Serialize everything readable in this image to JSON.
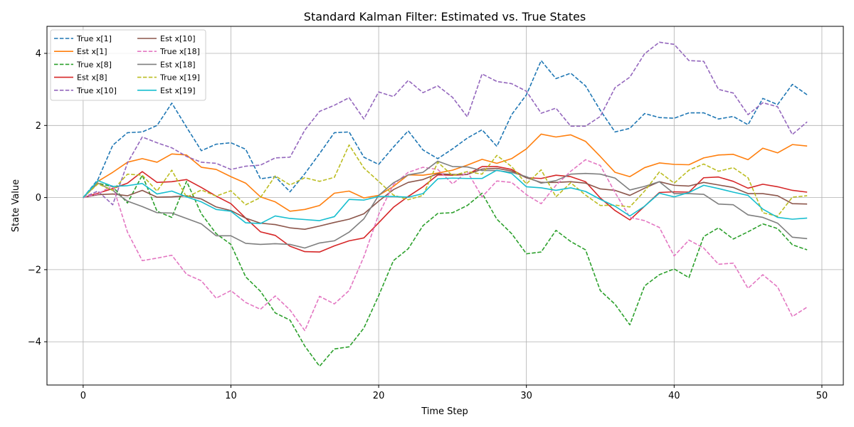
{
  "chart_data": {
    "type": "line",
    "title": "Standard Kalman Filter: Estimated vs. True States",
    "xlabel": "Time Step",
    "ylabel": "State Value",
    "xlim": [
      -2.45,
      51.45
    ],
    "ylim": [
      -5.2,
      4.75
    ],
    "xticks": [
      0,
      10,
      20,
      30,
      40,
      50
    ],
    "yticks": [
      -4,
      -2,
      0,
      2,
      4
    ],
    "grid": true,
    "legend": {
      "placement": "top-left",
      "columns": 2
    },
    "x": [
      0,
      1,
      2,
      3,
      4,
      5,
      6,
      7,
      8,
      9,
      10,
      11,
      12,
      13,
      14,
      15,
      16,
      17,
      18,
      19,
      20,
      21,
      22,
      23,
      24,
      25,
      26,
      27,
      28,
      29,
      30,
      31,
      32,
      33,
      34,
      35,
      36,
      37,
      38,
      39,
      40,
      41,
      42,
      43,
      44,
      45,
      46,
      47,
      48,
      49
    ],
    "series": [
      {
        "name": "True x[1]",
        "color": "#1f77b4",
        "style": "dashed",
        "values": [
          0.0,
          0.5,
          1.45,
          1.8,
          1.82,
          2.0,
          2.62,
          1.95,
          1.3,
          1.48,
          1.52,
          1.34,
          0.52,
          0.58,
          0.16,
          0.66,
          1.22,
          1.8,
          1.82,
          1.12,
          0.92,
          1.4,
          1.85,
          1.32,
          1.08,
          1.35,
          1.65,
          1.88,
          1.42,
          2.3,
          2.85,
          3.8,
          3.3,
          3.45,
          3.1,
          2.42,
          1.82,
          1.92,
          2.33,
          2.22,
          2.2,
          2.35,
          2.35,
          2.18,
          2.25,
          2.02,
          2.75,
          2.58,
          3.14,
          2.85
        ]
      },
      {
        "name": "Est x[1]",
        "color": "#ff7f0e",
        "style": "solid",
        "values": [
          0.0,
          0.45,
          0.7,
          0.98,
          1.08,
          0.98,
          1.21,
          1.18,
          0.84,
          0.78,
          0.58,
          0.4,
          0.02,
          -0.12,
          -0.38,
          -0.33,
          -0.22,
          0.12,
          0.18,
          -0.01,
          0.06,
          0.31,
          0.63,
          0.62,
          0.68,
          0.76,
          0.9,
          1.06,
          0.95,
          1.08,
          1.35,
          1.76,
          1.68,
          1.74,
          1.56,
          1.14,
          0.7,
          0.58,
          0.83,
          0.96,
          0.92,
          0.91,
          1.1,
          1.18,
          1.2,
          1.05,
          1.37,
          1.24,
          1.47,
          1.43
        ]
      },
      {
        "name": "True x[8]",
        "color": "#2ca02c",
        "style": "dashed",
        "values": [
          0.0,
          0.4,
          0.3,
          -0.15,
          0.62,
          -0.38,
          -0.55,
          0.45,
          -0.45,
          -1.0,
          -1.3,
          -2.2,
          -2.6,
          -3.2,
          -3.4,
          -4.12,
          -4.68,
          -4.2,
          -4.14,
          -3.62,
          -2.72,
          -1.75,
          -1.42,
          -0.78,
          -0.44,
          -0.42,
          -0.22,
          0.12,
          -0.6,
          -1.0,
          -1.56,
          -1.51,
          -0.91,
          -1.22,
          -1.45,
          -2.58,
          -2.96,
          -3.53,
          -2.45,
          -2.14,
          -1.98,
          -2.22,
          -1.08,
          -0.84,
          -1.15,
          -0.95,
          -0.73,
          -0.86,
          -1.31,
          -1.45
        ]
      },
      {
        "name": "Est x[8]",
        "color": "#d62728",
        "style": "solid",
        "values": [
          0.0,
          0.12,
          0.25,
          0.4,
          0.72,
          0.42,
          0.44,
          0.5,
          0.28,
          0.04,
          -0.17,
          -0.57,
          -0.95,
          -1.05,
          -1.35,
          -1.5,
          -1.51,
          -1.34,
          -1.2,
          -1.12,
          -0.7,
          -0.27,
          0.03,
          0.3,
          0.63,
          0.62,
          0.64,
          0.86,
          0.86,
          0.78,
          0.55,
          0.53,
          0.62,
          0.58,
          0.44,
          -0.01,
          -0.36,
          -0.62,
          -0.24,
          0.14,
          0.16,
          0.15,
          0.55,
          0.57,
          0.45,
          0.26,
          0.37,
          0.3,
          0.2,
          0.15
        ]
      },
      {
        "name": "True x[10]",
        "color": "#9467bd",
        "style": "dashed",
        "values": [
          0.0,
          0.18,
          -0.2,
          0.96,
          1.68,
          1.52,
          1.38,
          1.14,
          0.98,
          0.95,
          0.78,
          0.87,
          0.9,
          1.1,
          1.12,
          1.87,
          2.39,
          2.56,
          2.77,
          2.18,
          2.93,
          2.8,
          3.25,
          2.91,
          3.1,
          2.78,
          2.24,
          3.43,
          3.22,
          3.16,
          2.95,
          2.34,
          2.48,
          1.98,
          1.98,
          2.25,
          3.05,
          3.34,
          3.99,
          4.31,
          4.25,
          3.8,
          3.78,
          3.0,
          2.9,
          2.3,
          2.63,
          2.52,
          1.75,
          2.1
        ]
      },
      {
        "name": "Est x[10]",
        "color": "#8c564b",
        "style": "solid",
        "values": [
          0.0,
          0.08,
          0.1,
          0.05,
          0.2,
          0.01,
          0.02,
          0.05,
          -0.04,
          -0.26,
          -0.36,
          -0.57,
          -0.71,
          -0.75,
          -0.84,
          -0.88,
          -0.79,
          -0.69,
          -0.6,
          -0.45,
          -0.1,
          0.22,
          0.42,
          0.5,
          0.66,
          0.64,
          0.64,
          0.79,
          0.81,
          0.74,
          0.55,
          0.42,
          0.42,
          0.44,
          0.4,
          0.24,
          0.2,
          0.06,
          0.26,
          0.44,
          0.34,
          0.32,
          0.42,
          0.35,
          0.28,
          0.11,
          0.11,
          0.05,
          -0.17,
          -0.18
        ]
      },
      {
        "name": "True x[18]",
        "color": "#e377c2",
        "style": "dashed",
        "values": [
          0.0,
          0.1,
          0.34,
          -0.96,
          -1.75,
          -1.68,
          -1.6,
          -2.13,
          -2.31,
          -2.79,
          -2.58,
          -2.91,
          -3.1,
          -2.73,
          -3.12,
          -3.69,
          -2.74,
          -2.95,
          -2.58,
          -1.64,
          -0.47,
          0.36,
          0.7,
          0.84,
          0.78,
          0.38,
          0.72,
          0.02,
          0.46,
          0.42,
          0.08,
          -0.17,
          0.34,
          0.73,
          1.05,
          0.89,
          0.14,
          -0.55,
          -0.64,
          -0.83,
          -1.62,
          -1.18,
          -1.4,
          -1.85,
          -1.82,
          -2.52,
          -2.14,
          -2.48,
          -3.3,
          -3.04
        ]
      },
      {
        "name": "Est x[18]",
        "color": "#7f7f7f",
        "style": "solid",
        "values": [
          0.0,
          0.4,
          0.2,
          -0.1,
          -0.25,
          -0.42,
          -0.43,
          -0.58,
          -0.73,
          -1.06,
          -1.06,
          -1.27,
          -1.3,
          -1.28,
          -1.3,
          -1.4,
          -1.26,
          -1.2,
          -0.96,
          -0.59,
          0.06,
          0.41,
          0.63,
          0.7,
          1.01,
          0.86,
          0.85,
          0.75,
          0.75,
          0.7,
          0.58,
          0.4,
          0.47,
          0.65,
          0.67,
          0.65,
          0.54,
          0.21,
          0.31,
          0.44,
          0.11,
          0.11,
          0.09,
          -0.18,
          -0.2,
          -0.48,
          -0.55,
          -0.71,
          -1.1,
          -1.14
        ]
      },
      {
        "name": "True x[19]",
        "color": "#bcbd22",
        "style": "dashed",
        "values": [
          0.0,
          0.38,
          0.2,
          0.65,
          0.62,
          0.18,
          0.76,
          0.01,
          0.21,
          0.04,
          0.19,
          -0.2,
          0.0,
          0.6,
          0.35,
          0.55,
          0.45,
          0.56,
          1.46,
          0.82,
          0.45,
          0.07,
          -0.06,
          0.06,
          0.98,
          0.61,
          0.72,
          0.65,
          1.17,
          0.86,
          0.38,
          0.77,
          0.02,
          0.41,
          0.07,
          -0.22,
          -0.21,
          -0.26,
          0.18,
          0.71,
          0.4,
          0.76,
          0.93,
          0.73,
          0.83,
          0.55,
          -0.42,
          -0.52,
          0.01,
          0.05
        ]
      },
      {
        "name": "Est x[19]",
        "color": "#17becf",
        "style": "solid",
        "values": [
          0.0,
          0.47,
          0.31,
          0.33,
          0.39,
          0.1,
          0.18,
          0.02,
          -0.12,
          -0.33,
          -0.38,
          -0.7,
          -0.72,
          -0.51,
          -0.58,
          -0.61,
          -0.64,
          -0.53,
          -0.05,
          -0.07,
          0.03,
          0.03,
          0.01,
          0.11,
          0.52,
          0.54,
          0.53,
          0.53,
          0.76,
          0.67,
          0.3,
          0.27,
          0.2,
          0.27,
          0.17,
          -0.05,
          -0.24,
          -0.51,
          -0.24,
          0.12,
          0.02,
          0.14,
          0.34,
          0.25,
          0.15,
          0.06,
          -0.32,
          -0.55,
          -0.6,
          -0.57
        ]
      }
    ]
  }
}
